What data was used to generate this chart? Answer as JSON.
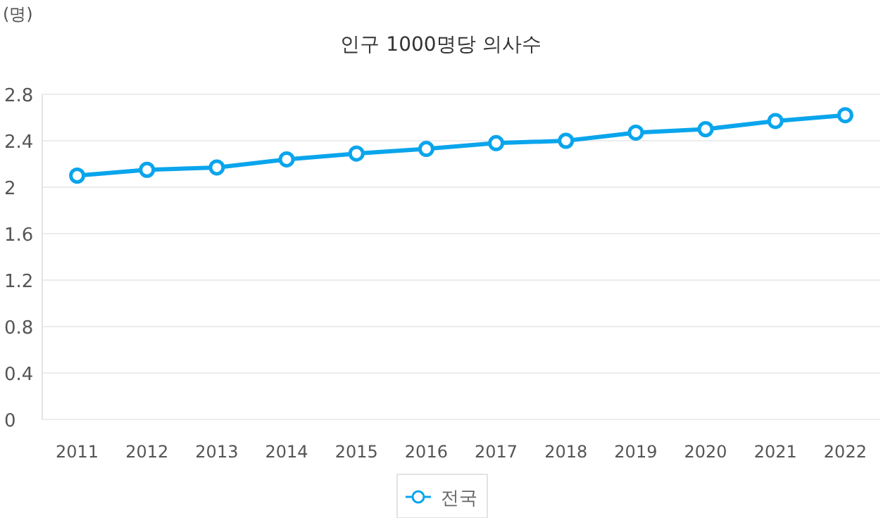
{
  "chart_data": {
    "type": "line",
    "title": "인구 1000명당 의사수",
    "ylabel": "(명)",
    "categories": [
      "2011",
      "2012",
      "2013",
      "2014",
      "2015",
      "2016",
      "2017",
      "2018",
      "2019",
      "2020",
      "2021",
      "2022"
    ],
    "series": [
      {
        "name": "전국",
        "color": "#0aa5ec",
        "values": [
          2.1,
          2.15,
          2.17,
          2.24,
          2.29,
          2.33,
          2.38,
          2.4,
          2.47,
          2.5,
          2.57,
          2.62
        ]
      }
    ],
    "ylim": [
      0,
      2.8
    ],
    "yticks": [
      0,
      0.4,
      0.8,
      1.2,
      1.6,
      2,
      2.4,
      2.8
    ],
    "grid": "y",
    "legend": "bottom",
    "marker": "circle",
    "line_style": "solid"
  }
}
